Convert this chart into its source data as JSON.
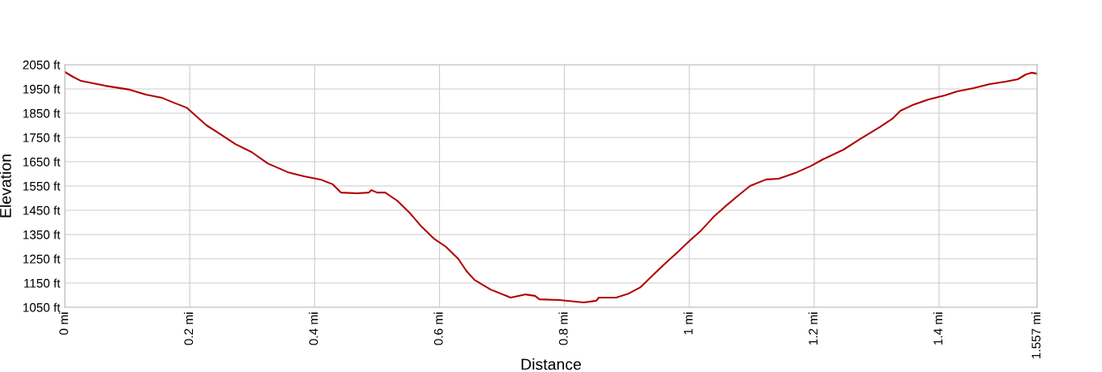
{
  "chart_data": {
    "type": "line",
    "xlabel": "Distance",
    "ylabel": "Elevation",
    "grid": true,
    "marker": "none",
    "line_style": "solid",
    "xlim": [
      0,
      1.557
    ],
    "ylim": [
      1050,
      2050
    ],
    "xticks": [
      {
        "value": 0,
        "label": "0 mi"
      },
      {
        "value": 0.2,
        "label": "0.2 mi"
      },
      {
        "value": 0.4,
        "label": "0.4 mi"
      },
      {
        "value": 0.6,
        "label": "0.6 mi"
      },
      {
        "value": 0.8,
        "label": "0.8 mi"
      },
      {
        "value": 1,
        "label": "1 mi"
      },
      {
        "value": 1.2,
        "label": "1.2 mi"
      },
      {
        "value": 1.4,
        "label": "1.4 mi"
      },
      {
        "value": 1.557,
        "label": "1.557 mi"
      }
    ],
    "yticks": [
      {
        "value": 1050,
        "label": "1050 ft"
      },
      {
        "value": 1150,
        "label": "1150 ft"
      },
      {
        "value": 1250,
        "label": "1250 ft"
      },
      {
        "value": 1350,
        "label": "1350 ft"
      },
      {
        "value": 1450,
        "label": "1450 ft"
      },
      {
        "value": 1550,
        "label": "1550 ft"
      },
      {
        "value": 1650,
        "label": "1650 ft"
      },
      {
        "value": 1750,
        "label": "1750 ft"
      },
      {
        "value": 1850,
        "label": "1850 ft"
      },
      {
        "value": 1950,
        "label": "1950 ft"
      },
      {
        "value": 2050,
        "label": "2050 ft"
      }
    ],
    "series": [
      {
        "color": "#b00000",
        "x": [
          0,
          0.013,
          0.026,
          0.065,
          0.104,
          0.13,
          0.156,
          0.175,
          0.195,
          0.208,
          0.227,
          0.247,
          0.273,
          0.299,
          0.325,
          0.357,
          0.383,
          0.409,
          0.429,
          0.442,
          0.468,
          0.487,
          0.491,
          0.5,
          0.513,
          0.532,
          0.552,
          0.571,
          0.591,
          0.61,
          0.63,
          0.643,
          0.656,
          0.682,
          0.714,
          0.738,
          0.753,
          0.76,
          0.792,
          0.831,
          0.851,
          0.855,
          0.883,
          0.903,
          0.922,
          0.942,
          0.961,
          0.981,
          1.0,
          1.019,
          1.039,
          1.058,
          1.078,
          1.097,
          1.123,
          1.143,
          1.169,
          1.195,
          1.214,
          1.247,
          1.273,
          1.305,
          1.325,
          1.338,
          1.357,
          1.383,
          1.409,
          1.429,
          1.455,
          1.481,
          1.506,
          1.526,
          1.539,
          1.548,
          1.557
        ],
        "values": [
          2020,
          2000,
          1983,
          1963,
          1947,
          1927,
          1913,
          1893,
          1873,
          1843,
          1800,
          1767,
          1723,
          1690,
          1643,
          1607,
          1590,
          1577,
          1557,
          1523,
          1520,
          1523,
          1533,
          1523,
          1523,
          1490,
          1440,
          1383,
          1333,
          1300,
          1250,
          1200,
          1163,
          1123,
          1090,
          1103,
          1097,
          1083,
          1080,
          1070,
          1077,
          1090,
          1090,
          1107,
          1133,
          1183,
          1230,
          1277,
          1323,
          1367,
          1423,
          1467,
          1510,
          1550,
          1577,
          1580,
          1603,
          1633,
          1660,
          1700,
          1743,
          1793,
          1827,
          1860,
          1883,
          1907,
          1923,
          1940,
          1953,
          1970,
          1980,
          1990,
          2010,
          2017,
          2013
        ]
      }
    ]
  }
}
